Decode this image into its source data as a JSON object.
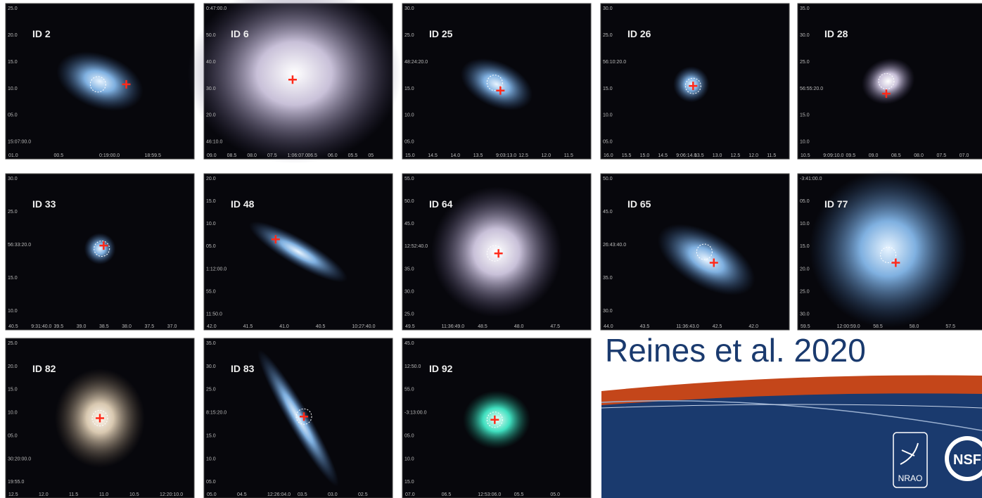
{
  "citation": "Reines et al. 2020",
  "logos": [
    "NRAO",
    "NSF"
  ],
  "panels": [
    {
      "label": "ID 2",
      "yticks": [
        "25.0",
        "20.0",
        "15.0",
        "10.0",
        "05.0",
        "15:07:00.0"
      ],
      "xticks": [
        "01.0",
        "00.5",
        "0:19:00.0",
        "18:59.5"
      ]
    },
    {
      "label": "ID 6",
      "yticks": [
        "0:47:00.0",
        "50.0",
        "40.0",
        "30.0",
        "20.0",
        "46:10.0"
      ],
      "xticks": [
        "09.0",
        "08.5",
        "08.0",
        "07.5",
        "1:06:07.0",
        "06.5",
        "06.0",
        "05.5",
        "05"
      ]
    },
    {
      "label": "ID 25",
      "yticks": [
        "30.0",
        "25.0",
        "48:24:20.0",
        "15.0",
        "10.0",
        "05.0"
      ],
      "xticks": [
        "15.0",
        "14.5",
        "14.0",
        "13.5",
        "9:03:13.0",
        "12.5",
        "12.0",
        "11.5"
      ]
    },
    {
      "label": "ID 26",
      "yticks": [
        "30.0",
        "25.0",
        "56:10:20.0",
        "15.0",
        "10.0",
        "05.0"
      ],
      "xticks": [
        "16.0",
        "15.5",
        "15.0",
        "14.5",
        "9:06:14.0",
        "13.5",
        "13.0",
        "12.5",
        "12.0",
        "11.5"
      ]
    },
    {
      "label": "ID 28",
      "yticks": [
        "35.0",
        "30.0",
        "25.0",
        "56:55:20.0",
        "15.0",
        "10.0"
      ],
      "xticks": [
        "10.5",
        "9:09:10.0",
        "09.5",
        "09.0",
        "08.5",
        "08.0",
        "07.5",
        "07.0"
      ]
    },
    {
      "label": "ID 33",
      "yticks": [
        "30.0",
        "25.0",
        "56:33:20.0",
        "15.0",
        "10.0"
      ],
      "xticks": [
        "40.5",
        "9:31:40.0",
        "39.5",
        "39.0",
        "38.5",
        "38.0",
        "37.5",
        "37.0"
      ]
    },
    {
      "label": "ID 48",
      "yticks": [
        "20.0",
        "15.0",
        "10.0",
        "05.0",
        "1:12:00.0",
        "55.0",
        "11:50.0"
      ],
      "xticks": [
        "42.0",
        "41.5",
        "41.0",
        "40.5",
        "10:27:40.0"
      ]
    },
    {
      "label": "ID 64",
      "yticks": [
        "55.0",
        "50.0",
        "45.0",
        "12:52:40.0",
        "35.0",
        "30.0",
        "25.0"
      ],
      "xticks": [
        "49.5",
        "11:36:49.0",
        "48.5",
        "48.0",
        "47.5"
      ]
    },
    {
      "label": "ID 65",
      "yticks": [
        "50.0",
        "45.0",
        "26:43:40.0",
        "35.0",
        "30.0"
      ],
      "xticks": [
        "44.0",
        "43.5",
        "11:36:43.0",
        "42.5",
        "42.0"
      ]
    },
    {
      "label": "ID 77",
      "yticks": [
        "-3:41:00.0",
        "05.0",
        "10.0",
        "15.0",
        "20.0",
        "25.0",
        "30.0"
      ],
      "xticks": [
        "59.5",
        "12:00:59.0",
        "58.5",
        "58.0",
        "57.5"
      ]
    },
    {
      "label": "ID 82",
      "yticks": [
        "25.0",
        "20.0",
        "15.0",
        "10.0",
        "05.0",
        "30:20:00.0",
        "19:55.0"
      ],
      "xticks": [
        "12.5",
        "12.0",
        "11.5",
        "11.0",
        "10.5",
        "12:20:10.0"
      ]
    },
    {
      "label": "ID 83",
      "yticks": [
        "35.0",
        "30.0",
        "25.0",
        "8:15:20.0",
        "15.0",
        "10.0",
        "05.0"
      ],
      "xticks": [
        "05.0",
        "04.5",
        "12:26:04.0",
        "03.5",
        "03.0",
        "02.5"
      ]
    },
    {
      "label": "ID 92",
      "yticks": [
        "45.0",
        "12:50.0",
        "55.0",
        "-3:13:00.0",
        "05.0",
        "10.0",
        "15.0"
      ],
      "xticks": [
        "07.0",
        "06.5",
        "12:53:06.0",
        "05.5",
        "05.0"
      ]
    }
  ]
}
